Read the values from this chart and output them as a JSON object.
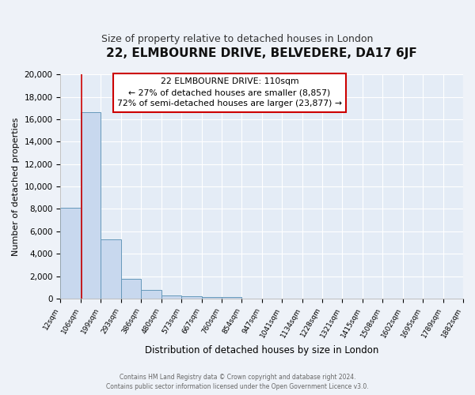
{
  "title": "22, ELMBOURNE DRIVE, BELVEDERE, DA17 6JF",
  "subtitle": "Size of property relative to detached houses in London",
  "xlabel": "Distribution of detached houses by size in London",
  "ylabel": "Number of detached properties",
  "property_line_x": 110,
  "annotation_title": "22 ELMBOURNE DRIVE: 110sqm",
  "annotation_line1": "← 27% of detached houses are smaller (8,857)",
  "annotation_line2": "72% of semi-detached houses are larger (23,877) →",
  "bar_left_edges": [
    12,
    106,
    199,
    293,
    386,
    480,
    573,
    667,
    760,
    854,
    947,
    1041,
    1134,
    1228,
    1321,
    1415,
    1508,
    1602,
    1695,
    1789
  ],
  "bar_widths": [
    94,
    93,
    94,
    93,
    94,
    93,
    94,
    93,
    94,
    93,
    94,
    93,
    94,
    93,
    94,
    93,
    94,
    93,
    94,
    93
  ],
  "bar_heights": [
    8100,
    16600,
    5300,
    1750,
    750,
    250,
    200,
    130,
    120,
    0,
    0,
    0,
    0,
    0,
    0,
    0,
    0,
    0,
    0,
    0
  ],
  "tick_labels": [
    "12sqm",
    "106sqm",
    "199sqm",
    "293sqm",
    "386sqm",
    "480sqm",
    "573sqm",
    "667sqm",
    "760sqm",
    "854sqm",
    "947sqm",
    "1041sqm",
    "1134sqm",
    "1228sqm",
    "1321sqm",
    "1415sqm",
    "1508sqm",
    "1602sqm",
    "1695sqm",
    "1789sqm",
    "1882sqm"
  ],
  "tick_positions": [
    12,
    106,
    199,
    293,
    386,
    480,
    573,
    667,
    760,
    854,
    947,
    1041,
    1134,
    1228,
    1321,
    1415,
    1508,
    1602,
    1695,
    1789,
    1882
  ],
  "ylim": [
    0,
    20000
  ],
  "yticks": [
    0,
    2000,
    4000,
    6000,
    8000,
    10000,
    12000,
    14000,
    16000,
    18000,
    20000
  ],
  "bar_facecolor": "#c8d8ee",
  "bar_edgecolor": "#6699bb",
  "redline_color": "#cc0000",
  "background_color": "#eef2f8",
  "plot_bg_color": "#e4ecf6",
  "grid_color": "#ffffff",
  "annotation_box_edgecolor": "#cc0000",
  "annotation_box_facecolor": "#ffffff",
  "footer_line1": "Contains HM Land Registry data © Crown copyright and database right 2024.",
  "footer_line2": "Contains public sector information licensed under the Open Government Licence v3.0."
}
